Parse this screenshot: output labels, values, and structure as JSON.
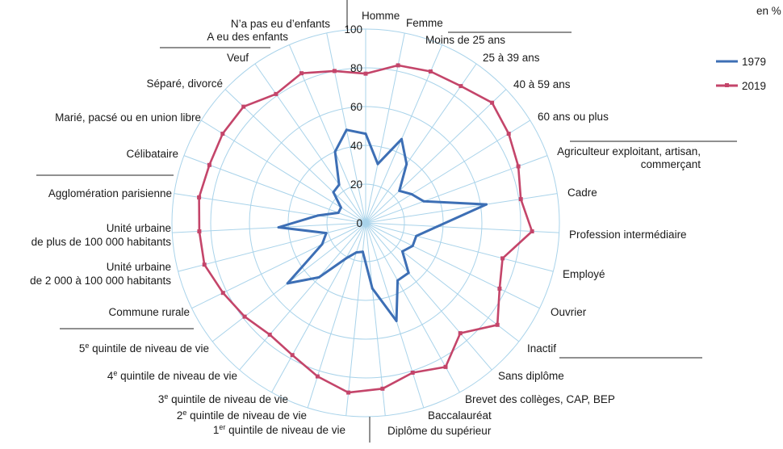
{
  "chart_data": {
    "type": "radar",
    "unit": "en %",
    "r_range": [
      0,
      100
    ],
    "r_ticks": [
      "0",
      "20",
      "40",
      "60",
      "80",
      "100"
    ],
    "grid": true,
    "legend_position": "right",
    "categories": [
      "Homme",
      "Femme",
      "Moins de 25 ans",
      "25 à 39 ans",
      "40 à 59 ans",
      "60 ans ou plus",
      "Agriculteur exploitant, artisan,|commerçant",
      "Cadre",
      "Profession intermédiaire",
      "Employé",
      "Ouvrier",
      "Inactif",
      "Sans diplôme",
      "Brevet des collèges, CAP, BEP",
      "Baccalauréat",
      "Diplôme du supérieur",
      "1^er quintile de niveau de vie",
      "2^e quintile de niveau de vie",
      "3^e quintile de niveau de vie",
      "4^e quintile de niveau de vie",
      "5^e quintile de niveau de vie",
      "Commune rurale",
      "Unité urbaine|de 2 000 à 100 000 habitants",
      "Unité urbaine|de plus de 100 000 habitants",
      "Agglomération parisienne",
      "Célibataire",
      "Marié, pacsé ou en union libre",
      "Séparé, divorcé",
      "Veuf",
      "A eu des enfants",
      "N’a pas eu d’enfants"
    ],
    "series": [
      {
        "name": "1979",
        "color": "#3d6fb5",
        "values": [
          46,
          31,
          47,
          37,
          24,
          28,
          32,
          63,
          37,
          27,
          27,
          24,
          34,
          34,
          53,
          34,
          15,
          16,
          21,
          37,
          51,
          25,
          21,
          45,
          25,
          15,
          15,
          23,
          24,
          40,
          49
        ]
      },
      {
        "name": "2019",
        "color": "#c4456a",
        "values": [
          77,
          83,
          85,
          86,
          90,
          87,
          84,
          81,
          86,
          73,
          77,
          86,
          75,
          85,
          81,
          86,
          88,
          83,
          78,
          76,
          79,
          82,
          86,
          86,
          87,
          86,
          87,
          87,
          81,
          84,
          80
        ]
      }
    ],
    "group_separators_after": [
      1,
      5,
      11,
      15,
      20,
      24,
      28
    ]
  }
}
